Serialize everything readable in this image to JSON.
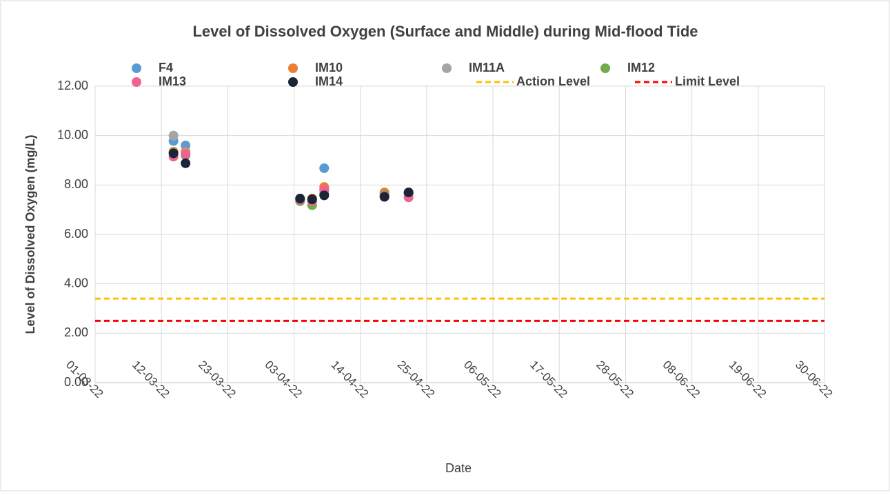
{
  "chart_data": {
    "type": "scatter",
    "title": "Level of Dissolved Oxygen (Surface and Middle) during Mid-flood Tide",
    "x_label": "Date",
    "y_label": "Level of Dissolved Oxygen (mg/L)",
    "x": [
      "14-03-22",
      "16-03-22",
      "04-04-22",
      "06-04-22",
      "08-04-22",
      "18-04-22",
      "22-04-22"
    ],
    "series": [
      {
        "name": "F4",
        "color": "#5b9bd5",
        "values": [
          9.78,
          9.6,
          7.35,
          7.45,
          8.68,
          7.65,
          7.68
        ]
      },
      {
        "name": "IM10",
        "color": "#ed7d31",
        "values": [
          9.35,
          9.35,
          7.45,
          7.45,
          7.92,
          7.7,
          7.7
        ]
      },
      {
        "name": "IM11A",
        "color": "#a5a5a5",
        "values": [
          10.0,
          9.3,
          7.4,
          7.4,
          7.8,
          7.6,
          7.65
        ]
      },
      {
        "name": "IM12",
        "color": "#70ad47",
        "values": [
          9.3,
          9.2,
          7.35,
          7.18,
          7.65,
          7.6,
          7.65
        ]
      },
      {
        "name": "IM13",
        "color": "#f06292",
        "values": [
          9.15,
          9.25,
          7.4,
          7.35,
          7.8,
          7.55,
          7.5
        ]
      },
      {
        "name": "IM14",
        "color": "#1c2536",
        "values": [
          9.28,
          8.88,
          7.45,
          7.42,
          7.58,
          7.52,
          7.7
        ]
      }
    ],
    "reference_lines": [
      {
        "name": "Action Level",
        "color": "#ffc000",
        "value": 3.4
      },
      {
        "name": "Limit Level",
        "color": "#ff0000",
        "value": 2.5
      }
    ],
    "xlim": [
      "01-03-22",
      "30-06-22"
    ],
    "xticks": [
      "01-03-22",
      "12-03-22",
      "23-03-22",
      "03-04-22",
      "14-04-22",
      "25-04-22",
      "06-05-22",
      "17-05-22",
      "28-05-22",
      "08-06-22",
      "19-06-22",
      "30-06-22"
    ],
    "ylim": [
      0,
      12
    ],
    "yticks": [
      {
        "value": 0,
        "label": "0.00"
      },
      {
        "value": 2,
        "label": "2.00"
      },
      {
        "value": 4,
        "label": "4.00"
      },
      {
        "value": 6,
        "label": "6.00"
      },
      {
        "value": 8,
        "label": "8.00"
      },
      {
        "value": 10,
        "label": "10.00"
      },
      {
        "value": 12,
        "label": "12.00"
      }
    ],
    "grid": true
  }
}
